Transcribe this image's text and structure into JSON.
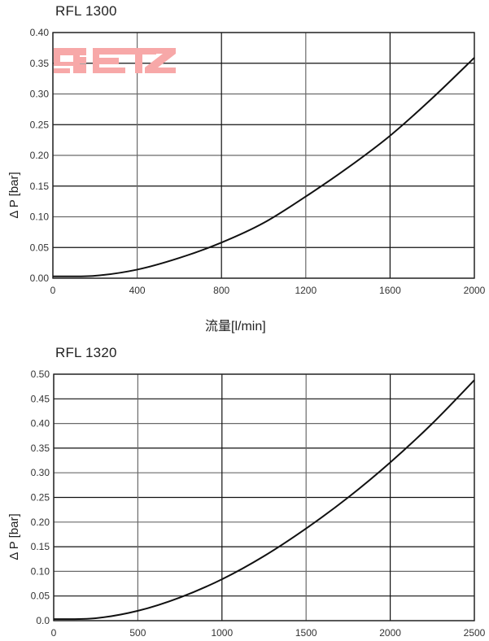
{
  "chart_data": [
    {
      "type": "line",
      "title": "RFL 1300",
      "xlabel": "流量[l/min]",
      "ylabel": "Δ P [bar]",
      "xlim": [
        0,
        2000
      ],
      "ylim": [
        0,
        0.4
      ],
      "x_ticks": [
        "0",
        "400",
        "800",
        "1200",
        "1600",
        "2000"
      ],
      "y_ticks": [
        "0.00",
        "0.05",
        "0.10",
        "0.15",
        "0.20",
        "0.25",
        "0.30",
        "0.35",
        "0.40"
      ],
      "grid": true,
      "legend": null,
      "series": [
        {
          "name": "RFL 1300",
          "x": [
            0,
            200,
            400,
            600,
            800,
            1000,
            1200,
            1400,
            1600,
            1800,
            2000
          ],
          "y": [
            0.003,
            0.004,
            0.014,
            0.033,
            0.058,
            0.09,
            0.133,
            0.18,
            0.232,
            0.293,
            0.359
          ]
        }
      ]
    },
    {
      "type": "line",
      "title": "RFL 1320",
      "xlabel": "",
      "ylabel": "Δ P [bar]",
      "xlim": [
        0,
        2500
      ],
      "ylim": [
        0,
        0.5
      ],
      "x_ticks": [
        "0",
        "500",
        "1000",
        "1500",
        "2000",
        "2500"
      ],
      "y_ticks": [
        "0.0",
        "0.05",
        "0.10",
        "0.15",
        "0.20",
        "0.25",
        "0.30",
        "0.35",
        "0.40",
        "0.45",
        "0.50"
      ],
      "grid": true,
      "legend": null,
      "series": [
        {
          "name": "RFL 1320",
          "x": [
            0,
            250,
            500,
            750,
            1000,
            1250,
            1500,
            1750,
            2000,
            2250,
            2500
          ],
          "y": [
            0.003,
            0.005,
            0.02,
            0.047,
            0.084,
            0.131,
            0.187,
            0.25,
            0.321,
            0.4,
            0.488
          ]
        }
      ]
    }
  ],
  "watermark": {
    "text": "RETZ",
    "color": "#f7a8a8"
  },
  "colors": {
    "curve": "#111111",
    "grid_dark": "#111111",
    "grid_gray": "#6a6a6a"
  }
}
